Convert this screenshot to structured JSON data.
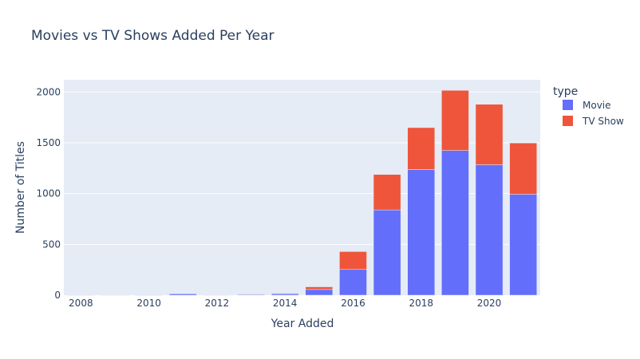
{
  "chart_data": {
    "type": "bar",
    "title": "Movies vs TV Shows Added Per Year",
    "xlabel": "Year Added",
    "ylabel": "Number of Titles",
    "barmode": "stack",
    "x": [
      2008,
      2009,
      2010,
      2011,
      2012,
      2013,
      2014,
      2015,
      2016,
      2017,
      2018,
      2019,
      2020,
      2021
    ],
    "xticks": [
      2008,
      2010,
      2012,
      2014,
      2016,
      2018,
      2020
    ],
    "yticks": [
      0,
      500,
      1000,
      1500,
      2000
    ],
    "ylim": [
      0,
      2120
    ],
    "grid": true,
    "legend": {
      "title": "type",
      "position": "right"
    },
    "series": [
      {
        "name": "Movie",
        "color": "#636efa",
        "values": [
          1,
          2,
          1,
          13,
          3,
          6,
          14,
          56,
          253,
          839,
          1237,
          1424,
          1284,
          993
        ]
      },
      {
        "name": "TV Show",
        "color": "#ef553b",
        "values": [
          1,
          0,
          0,
          0,
          0,
          5,
          5,
          26,
          176,
          349,
          412,
          592,
          595,
          505
        ]
      }
    ]
  }
}
